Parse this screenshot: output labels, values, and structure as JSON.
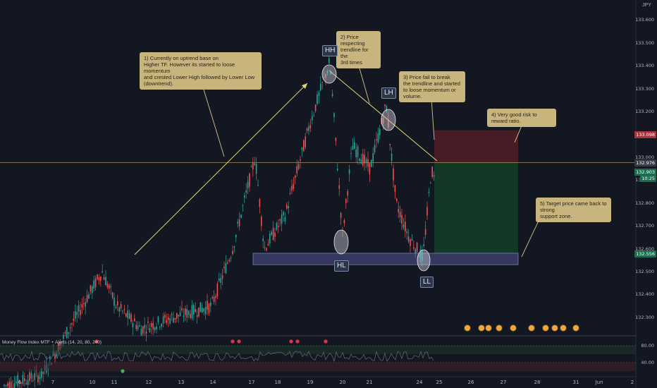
{
  "currency": "JPY",
  "price_axis": {
    "ticks": [
      "133.600",
      "133.500",
      "133.400",
      "133.300",
      "133.200",
      "133.100",
      "133.000",
      "132.900",
      "132.800",
      "132.700",
      "132.600",
      "132.500",
      "132.400",
      "132.300"
    ]
  },
  "price_badges": [
    {
      "label": "133.098",
      "color": "#a8323e"
    },
    {
      "label": "132.976",
      "color": "#363a45"
    },
    {
      "label": "132.903",
      "color": "#1e6b50"
    },
    {
      "label": "10:25",
      "color": "#1e6b50"
    },
    {
      "label": "132.556",
      "color": "#1e6b50"
    }
  ],
  "date_axis": {
    "ticks": [
      "6",
      "7",
      "10",
      "11",
      "12",
      "13",
      "14",
      "17",
      "18",
      "19",
      "20",
      "21",
      "24",
      "25",
      "26",
      "27",
      "28",
      "31",
      "Jun",
      "2"
    ]
  },
  "indicator": {
    "label": "Money Flow Index MTF + Alerts (14, 20, 80, 240)",
    "levels": [
      "80.00",
      "40.00"
    ]
  },
  "annotations": [
    {
      "id": "note1",
      "text": "1) Currently on uptrend base on\nHigher TF. However its started to loose momentum\nand crested Lower High followed by Lower Low (downtrend)."
    },
    {
      "id": "note2",
      "text": "2) Price respecting\ntrendline for the\n3rd times"
    },
    {
      "id": "note3",
      "text": "3) Price fail to break\nthe trendline and started\nto loose momentum or volume."
    },
    {
      "id": "note4",
      "text": "4) Very good risk to reward ratio."
    },
    {
      "id": "note5",
      "text": "5) Target price came back to strong\nsupport zone."
    }
  ],
  "labels": {
    "hh": "HH",
    "lh": "LH",
    "hl": "HL",
    "ll": "LL"
  },
  "colors": {
    "bull": "#26a69a",
    "bear": "#ef5350",
    "note": "#c8b47d",
    "stop_zone": "#4a1c25",
    "target_zone": "#123b26",
    "support_zone": "#3b3e6a"
  },
  "chart_data": {
    "type": "candlestick",
    "ylim": [
      132.25,
      133.65
    ],
    "x_dates": [
      "6",
      "7",
      "10",
      "11",
      "12",
      "13",
      "14",
      "17",
      "18",
      "19",
      "20",
      "21",
      "24",
      "25",
      "26",
      "27",
      "28",
      "31",
      "Jun",
      "2"
    ],
    "key_points": [
      {
        "label": "HH",
        "date": "19",
        "price": 133.42
      },
      {
        "label": "LH",
        "date": "21",
        "price": 133.22
      },
      {
        "label": "HL",
        "date": "20",
        "price": 132.65
      },
      {
        "label": "LL",
        "date": "24",
        "price": 132.56
      }
    ],
    "support_zone": [
      132.53,
      132.58
    ],
    "trade": {
      "entry": 132.976,
      "stop": 133.098,
      "target": 132.58
    },
    "close_price": 132.903
  }
}
